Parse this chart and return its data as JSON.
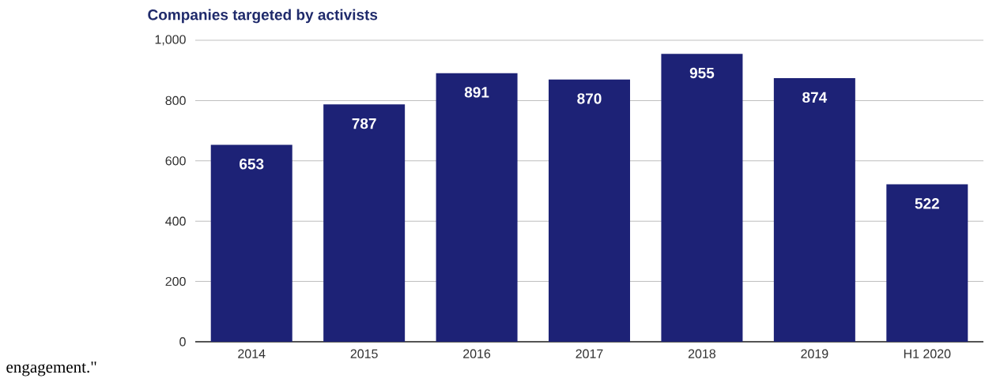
{
  "chart_data": {
    "type": "bar",
    "title": "Companies targeted by activists",
    "categories": [
      "2014",
      "2015",
      "2016",
      "2017",
      "2018",
      "2019",
      "H1 2020"
    ],
    "values": [
      653,
      787,
      891,
      870,
      955,
      874,
      522
    ],
    "color": "#1d2276",
    "ylim": [
      0,
      1000
    ],
    "yticks": [
      0,
      200,
      400,
      600,
      800,
      {
        "value": 1000,
        "label": "1,000"
      }
    ],
    "grid": "y",
    "data_labels": true,
    "annotations": [
      "engagement.\""
    ]
  }
}
